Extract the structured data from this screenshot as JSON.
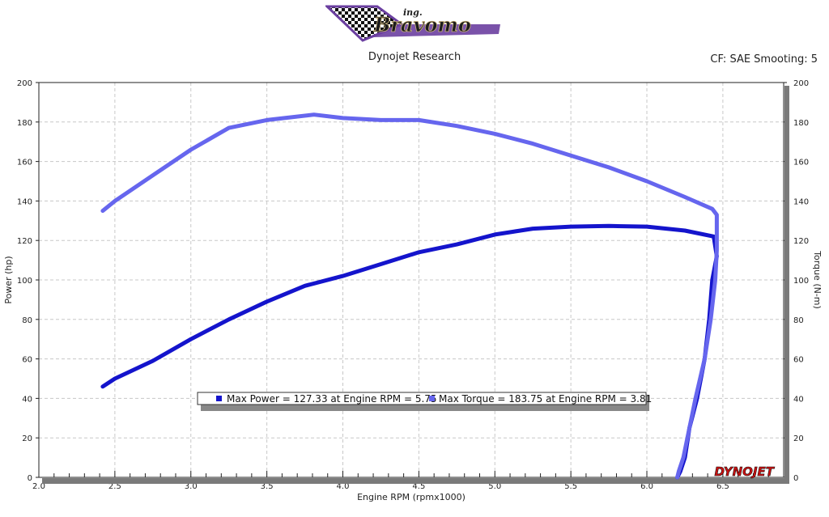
{
  "header": {
    "logo_small": "ing.",
    "logo_text": "Bravomo",
    "subtitle": "Dynojet Research",
    "settings": "CF: SAE Smooting: 5"
  },
  "watermark": "DYNOJET",
  "colors": {
    "power": "#1414cc",
    "torque": "#6666ee",
    "grid": "#c8c8c8",
    "background": "#ffffff"
  },
  "legend": {
    "power_text": "Max Power = 127.33 at Engine RPM = 5.75",
    "torque_text": "Max Torque = 183.75 at Engine RPM = 3.81"
  },
  "chart_data": {
    "type": "line",
    "xlabel": "Engine RPM (rpmx1000)",
    "ylabel": "Power (hp)",
    "y2label": "Torque (N-m)",
    "xlim": [
      2.0,
      6.9
    ],
    "ylim": [
      0,
      200
    ],
    "y2lim": [
      0,
      200
    ],
    "xticks": [
      "2.0",
      "2.5",
      "3.0",
      "3.5",
      "4.0",
      "4.5",
      "5.0",
      "5.5",
      "6.0",
      "6.5"
    ],
    "yticks": [
      "0",
      "20",
      "40",
      "60",
      "80",
      "100",
      "120",
      "140",
      "160",
      "180",
      "200"
    ],
    "grid": true,
    "legend_position": "bottom-center",
    "series": [
      {
        "name": "Power",
        "axis": "left",
        "points": [
          [
            2.42,
            46
          ],
          [
            2.5,
            50
          ],
          [
            2.75,
            59
          ],
          [
            3.0,
            70
          ],
          [
            3.25,
            80
          ],
          [
            3.5,
            89
          ],
          [
            3.75,
            97
          ],
          [
            4.0,
            102
          ],
          [
            4.25,
            108
          ],
          [
            4.5,
            114
          ],
          [
            4.75,
            118
          ],
          [
            5.0,
            123
          ],
          [
            5.25,
            126
          ],
          [
            5.5,
            127
          ],
          [
            5.75,
            127.33
          ],
          [
            6.0,
            127
          ],
          [
            6.25,
            125
          ],
          [
            6.44,
            122
          ],
          [
            6.46,
            112
          ],
          [
            6.43,
            100
          ],
          [
            6.41,
            80
          ],
          [
            6.38,
            60
          ],
          [
            6.33,
            40
          ],
          [
            6.28,
            25
          ],
          [
            6.25,
            10
          ],
          [
            6.22,
            3
          ],
          [
            6.2,
            0
          ]
        ]
      },
      {
        "name": "Torque",
        "axis": "right",
        "points": [
          [
            2.42,
            135
          ],
          [
            2.5,
            140
          ],
          [
            2.75,
            153
          ],
          [
            3.0,
            166
          ],
          [
            3.25,
            177
          ],
          [
            3.5,
            181
          ],
          [
            3.81,
            183.75
          ],
          [
            4.0,
            182
          ],
          [
            4.25,
            181
          ],
          [
            4.5,
            181
          ],
          [
            4.75,
            178
          ],
          [
            5.0,
            174
          ],
          [
            5.25,
            169
          ],
          [
            5.5,
            163
          ],
          [
            5.75,
            157
          ],
          [
            6.0,
            150
          ],
          [
            6.25,
            142
          ],
          [
            6.43,
            136
          ],
          [
            6.46,
            133
          ],
          [
            6.46,
            115
          ],
          [
            6.45,
            100
          ],
          [
            6.42,
            80
          ],
          [
            6.38,
            60
          ],
          [
            6.32,
            40
          ],
          [
            6.28,
            25
          ],
          [
            6.24,
            10
          ],
          [
            6.21,
            3
          ],
          [
            6.2,
            0
          ]
        ]
      }
    ]
  }
}
